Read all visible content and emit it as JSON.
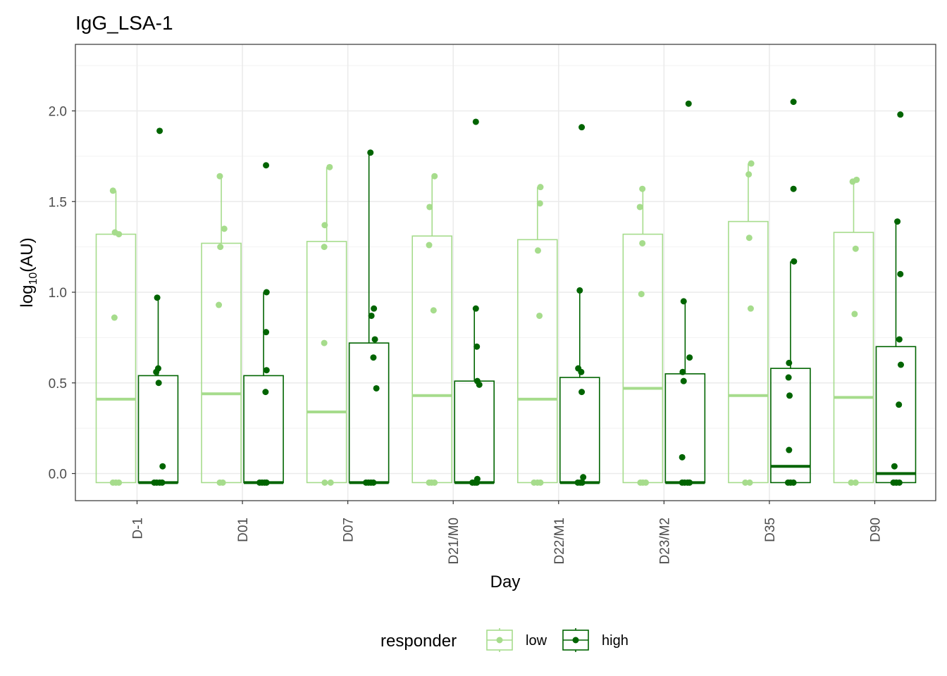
{
  "chart_data": {
    "type": "box",
    "title": "IgG_LSA-1",
    "xlabel": "Day",
    "ylabel": {
      "base": "log",
      "subscript": "10",
      "rest": "(AU)"
    },
    "ylim": [
      -0.15,
      2.3
    ],
    "yticks": [
      0.0,
      0.5,
      1.0,
      1.5,
      2.0
    ],
    "ytick_labels": [
      "0.0",
      "0.5",
      "1.0",
      "1.5",
      "2.0"
    ],
    "grid": true,
    "categories": [
      "D-1",
      "D01",
      "D07",
      "D21/M0",
      "D22/M1",
      "D23/M2",
      "D35",
      "D90"
    ],
    "legend": {
      "title": "responder",
      "position": "bottom"
    },
    "series": [
      {
        "name": "low",
        "color": "#a6dc8c",
        "boxes": [
          {
            "q1": -0.05,
            "median": 0.41,
            "q3": 1.32,
            "lower": -0.05,
            "upper": 1.56
          },
          {
            "q1": -0.05,
            "median": 0.44,
            "q3": 1.27,
            "lower": -0.05,
            "upper": 1.64
          },
          {
            "q1": -0.05,
            "median": 0.34,
            "q3": 1.28,
            "lower": -0.05,
            "upper": 1.69
          },
          {
            "q1": -0.05,
            "median": 0.43,
            "q3": 1.31,
            "lower": -0.05,
            "upper": 1.64
          },
          {
            "q1": -0.05,
            "median": 0.41,
            "q3": 1.29,
            "lower": -0.05,
            "upper": 1.58
          },
          {
            "q1": -0.05,
            "median": 0.47,
            "q3": 1.32,
            "lower": -0.05,
            "upper": 1.57
          },
          {
            "q1": -0.05,
            "median": 0.43,
            "q3": 1.39,
            "lower": -0.05,
            "upper": 1.71
          },
          {
            "q1": -0.05,
            "median": 0.42,
            "q3": 1.33,
            "lower": -0.05,
            "upper": 1.62
          }
        ],
        "points": [
          [
            [
              -0.06,
              1.56
            ],
            [
              -0.02,
              1.33
            ],
            [
              0.06,
              1.32
            ],
            [
              -0.03,
              0.86
            ],
            [
              -0.06,
              -0.05
            ],
            [
              0.0,
              -0.05
            ],
            [
              0.06,
              -0.05
            ]
          ],
          [
            [
              -0.03,
              1.64
            ],
            [
              0.06,
              1.35
            ],
            [
              -0.02,
              1.25
            ],
            [
              -0.05,
              0.93
            ],
            [
              -0.03,
              -0.05
            ],
            [
              0.03,
              -0.05
            ]
          ],
          [
            [
              0.06,
              1.69
            ],
            [
              -0.04,
              1.37
            ],
            [
              -0.05,
              1.25
            ],
            [
              -0.05,
              0.72
            ],
            [
              -0.04,
              -0.05
            ],
            [
              0.08,
              -0.05
            ]
          ],
          [
            [
              0.05,
              1.64
            ],
            [
              -0.05,
              1.47
            ],
            [
              -0.06,
              1.26
            ],
            [
              0.03,
              0.9
            ],
            [
              -0.06,
              -0.05
            ],
            [
              -0.01,
              -0.05
            ],
            [
              0.05,
              -0.05
            ]
          ],
          [
            [
              0.06,
              1.58
            ],
            [
              0.05,
              1.49
            ],
            [
              0.01,
              1.23
            ],
            [
              0.04,
              0.87
            ],
            [
              -0.07,
              -0.05
            ],
            [
              0.0,
              -0.05
            ],
            [
              0.06,
              -0.05
            ]
          ],
          [
            [
              -0.01,
              1.57
            ],
            [
              -0.06,
              1.47
            ],
            [
              -0.01,
              1.27
            ],
            [
              -0.03,
              0.99
            ],
            [
              -0.05,
              -0.05
            ],
            [
              0.0,
              -0.05
            ],
            [
              0.06,
              -0.05
            ]
          ],
          [
            [
              0.06,
              1.71
            ],
            [
              0.01,
              1.65
            ],
            [
              0.02,
              1.3
            ],
            [
              0.05,
              0.91
            ],
            [
              -0.06,
              -0.05
            ],
            [
              0.03,
              -0.05
            ]
          ],
          [
            [
              -0.02,
              1.61
            ],
            [
              0.06,
              1.62
            ],
            [
              0.04,
              1.24
            ],
            [
              0.02,
              0.88
            ],
            [
              -0.05,
              -0.05
            ],
            [
              0.04,
              -0.05
            ]
          ]
        ]
      },
      {
        "name": "high",
        "color": "#006400",
        "boxes": [
          {
            "q1": -0.05,
            "median": -0.05,
            "q3": 0.54,
            "lower": -0.05,
            "upper": 0.97
          },
          {
            "q1": -0.05,
            "median": -0.05,
            "q3": 0.54,
            "lower": -0.05,
            "upper": 1.0
          },
          {
            "q1": -0.05,
            "median": -0.05,
            "q3": 0.72,
            "lower": -0.05,
            "upper": 1.77
          },
          {
            "q1": -0.05,
            "median": -0.05,
            "q3": 0.51,
            "lower": -0.05,
            "upper": 0.91
          },
          {
            "q1": -0.05,
            "median": -0.05,
            "q3": 0.53,
            "lower": -0.05,
            "upper": 1.01
          },
          {
            "q1": -0.05,
            "median": -0.05,
            "q3": 0.55,
            "lower": -0.05,
            "upper": 0.95
          },
          {
            "q1": -0.05,
            "median": 0.04,
            "q3": 0.58,
            "lower": -0.05,
            "upper": 1.17
          },
          {
            "q1": -0.05,
            "median": 0.0,
            "q3": 0.7,
            "lower": -0.05,
            "upper": 1.39
          }
        ],
        "points": [
          [
            [
              0.03,
              1.89
            ],
            [
              -0.02,
              0.97
            ],
            [
              0.0,
              0.58
            ],
            [
              -0.04,
              0.56
            ],
            [
              0.01,
              0.5
            ],
            [
              0.09,
              0.04
            ],
            [
              -0.08,
              -0.05
            ],
            [
              -0.03,
              -0.05
            ],
            [
              0.03,
              -0.05
            ],
            [
              0.08,
              -0.05
            ]
          ],
          [
            [
              0.05,
              1.7
            ],
            [
              0.06,
              1.0
            ],
            [
              0.05,
              0.78
            ],
            [
              0.06,
              0.57
            ],
            [
              0.04,
              0.45
            ],
            [
              -0.08,
              -0.05
            ],
            [
              -0.03,
              -0.05
            ],
            [
              0.02,
              -0.05
            ],
            [
              0.06,
              -0.05
            ]
          ],
          [
            [
              0.03,
              1.77
            ],
            [
              0.1,
              0.91
            ],
            [
              0.05,
              0.87
            ],
            [
              0.12,
              0.74
            ],
            [
              0.09,
              0.64
            ],
            [
              0.15,
              0.47
            ],
            [
              -0.06,
              -0.05
            ],
            [
              -0.01,
              -0.05
            ],
            [
              0.04,
              -0.05
            ],
            [
              0.09,
              -0.05
            ]
          ],
          [
            [
              0.03,
              1.94
            ],
            [
              0.03,
              0.91
            ],
            [
              0.05,
              0.7
            ],
            [
              0.06,
              0.51
            ],
            [
              0.1,
              0.49
            ],
            [
              0.06,
              -0.03
            ],
            [
              -0.04,
              -0.05
            ],
            [
              0.01,
              -0.05
            ],
            [
              0.05,
              -0.05
            ]
          ],
          [
            [
              0.04,
              1.91
            ],
            [
              0.0,
              1.01
            ],
            [
              -0.03,
              0.58
            ],
            [
              0.03,
              0.56
            ],
            [
              0.04,
              0.45
            ],
            [
              0.07,
              -0.02
            ],
            [
              -0.04,
              -0.05
            ],
            [
              0.01,
              -0.05
            ],
            [
              0.05,
              -0.05
            ]
          ],
          [
            [
              0.07,
              2.04
            ],
            [
              -0.03,
              0.95
            ],
            [
              0.09,
              0.64
            ],
            [
              -0.05,
              0.56
            ],
            [
              -0.03,
              0.51
            ],
            [
              -0.06,
              0.09
            ],
            [
              -0.06,
              -0.05
            ],
            [
              -0.01,
              -0.05
            ],
            [
              0.05,
              -0.05
            ],
            [
              0.09,
              -0.05
            ]
          ],
          [
            [
              0.06,
              2.05
            ],
            [
              0.06,
              1.57
            ],
            [
              0.07,
              1.17
            ],
            [
              -0.03,
              0.61
            ],
            [
              -0.04,
              0.53
            ],
            [
              -0.02,
              0.43
            ],
            [
              -0.03,
              0.13
            ],
            [
              -0.05,
              -0.05
            ],
            [
              0.0,
              -0.05
            ],
            [
              0.06,
              -0.05
            ]
          ],
          [
            [
              0.09,
              1.98
            ],
            [
              0.03,
              1.39
            ],
            [
              0.09,
              1.1
            ],
            [
              0.07,
              0.74
            ],
            [
              0.1,
              0.6
            ],
            [
              0.06,
              0.38
            ],
            [
              -0.03,
              0.04
            ],
            [
              -0.05,
              -0.05
            ],
            [
              0.01,
              -0.05
            ],
            [
              0.07,
              -0.05
            ]
          ]
        ]
      }
    ]
  }
}
